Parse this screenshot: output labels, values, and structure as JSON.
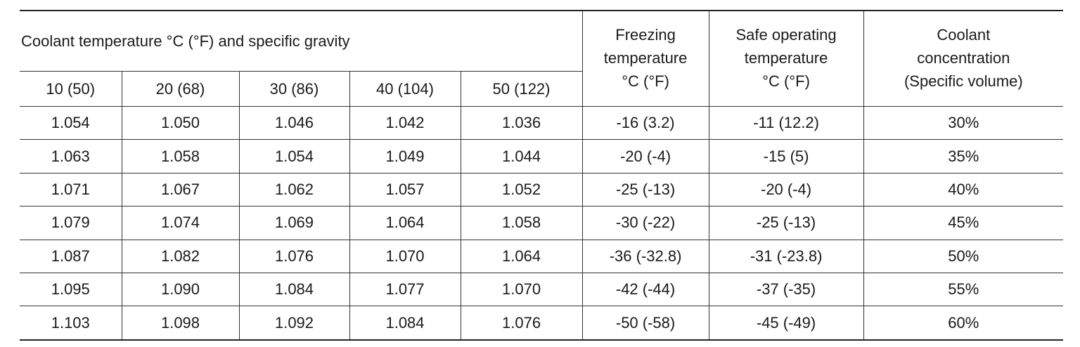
{
  "header": {
    "group_title": "Coolant temperature °C (°F) and specific gravity",
    "subcolumns": [
      "10 (50)",
      "20 (68)",
      "30 (86)",
      "40 (104)",
      "50 (122)"
    ],
    "columns": [
      [
        "Freezing",
        "temperature",
        "°C (°F)"
      ],
      [
        "Safe operating",
        "temperature",
        "°C (°F)"
      ],
      [
        "Coolant",
        "concentration",
        "(Specific volume)"
      ]
    ]
  },
  "table": {
    "rows": [
      [
        "1.054",
        "1.050",
        "1.046",
        "1.042",
        "1.036",
        "-16 (3.2)",
        "-11 (12.2)",
        "30%"
      ],
      [
        "1.063",
        "1.058",
        "1.054",
        "1.049",
        "1.044",
        "-20 (-4)",
        "-15 (5)",
        "35%"
      ],
      [
        "1.071",
        "1.067",
        "1.062",
        "1.057",
        "1.052",
        "-25 (-13)",
        "-20 (-4)",
        "40%"
      ],
      [
        "1.079",
        "1.074",
        "1.069",
        "1.064",
        "1.058",
        "-30 (-22)",
        "-25 (-13)",
        "45%"
      ],
      [
        "1.087",
        "1.082",
        "1.076",
        "1.070",
        "1.064",
        "-36 (-32.8)",
        "-31 (-23.8)",
        "50%"
      ],
      [
        "1.095",
        "1.090",
        "1.084",
        "1.077",
        "1.070",
        "-42 (-44)",
        "-37 (-35)",
        "55%"
      ],
      [
        "1.103",
        "1.098",
        "1.092",
        "1.084",
        "1.076",
        "-50 (-58)",
        "-45 (-49)",
        "60%"
      ]
    ]
  }
}
